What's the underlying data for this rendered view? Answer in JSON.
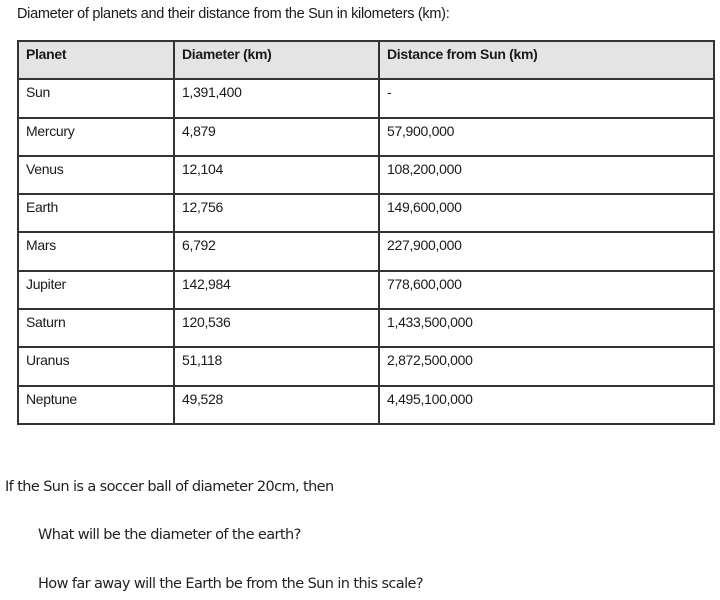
{
  "title": "Diameter of planets and their distance from the Sun in kilometers (km):",
  "table": {
    "headers": [
      "Planet",
      "Diameter (km)",
      "Distance from Sun (km)"
    ],
    "rows": [
      [
        "Sun",
        "1,391,400",
        "-"
      ],
      [
        "Mercury",
        "4,879",
        "57,900,000"
      ],
      [
        "Venus",
        "12,104",
        "108,200,000"
      ],
      [
        "Earth",
        "12,756",
        "149,600,000"
      ],
      [
        "Mars",
        "6,792",
        "227,900,000"
      ],
      [
        "Jupiter",
        "142,984",
        "778,600,000"
      ],
      [
        "Saturn",
        "120,536",
        "1,433,500,000"
      ],
      [
        "Uranus",
        "51,118",
        "2,872,500,000"
      ],
      [
        "Neptune",
        "49,528",
        "4,495,100,000"
      ]
    ]
  },
  "prompt": "If the Sun is a soccer ball of diameter 20cm, then",
  "questions": [
    "What will be the diameter of the earth?",
    "How far away will the Earth be from the Sun in this scale?"
  ]
}
